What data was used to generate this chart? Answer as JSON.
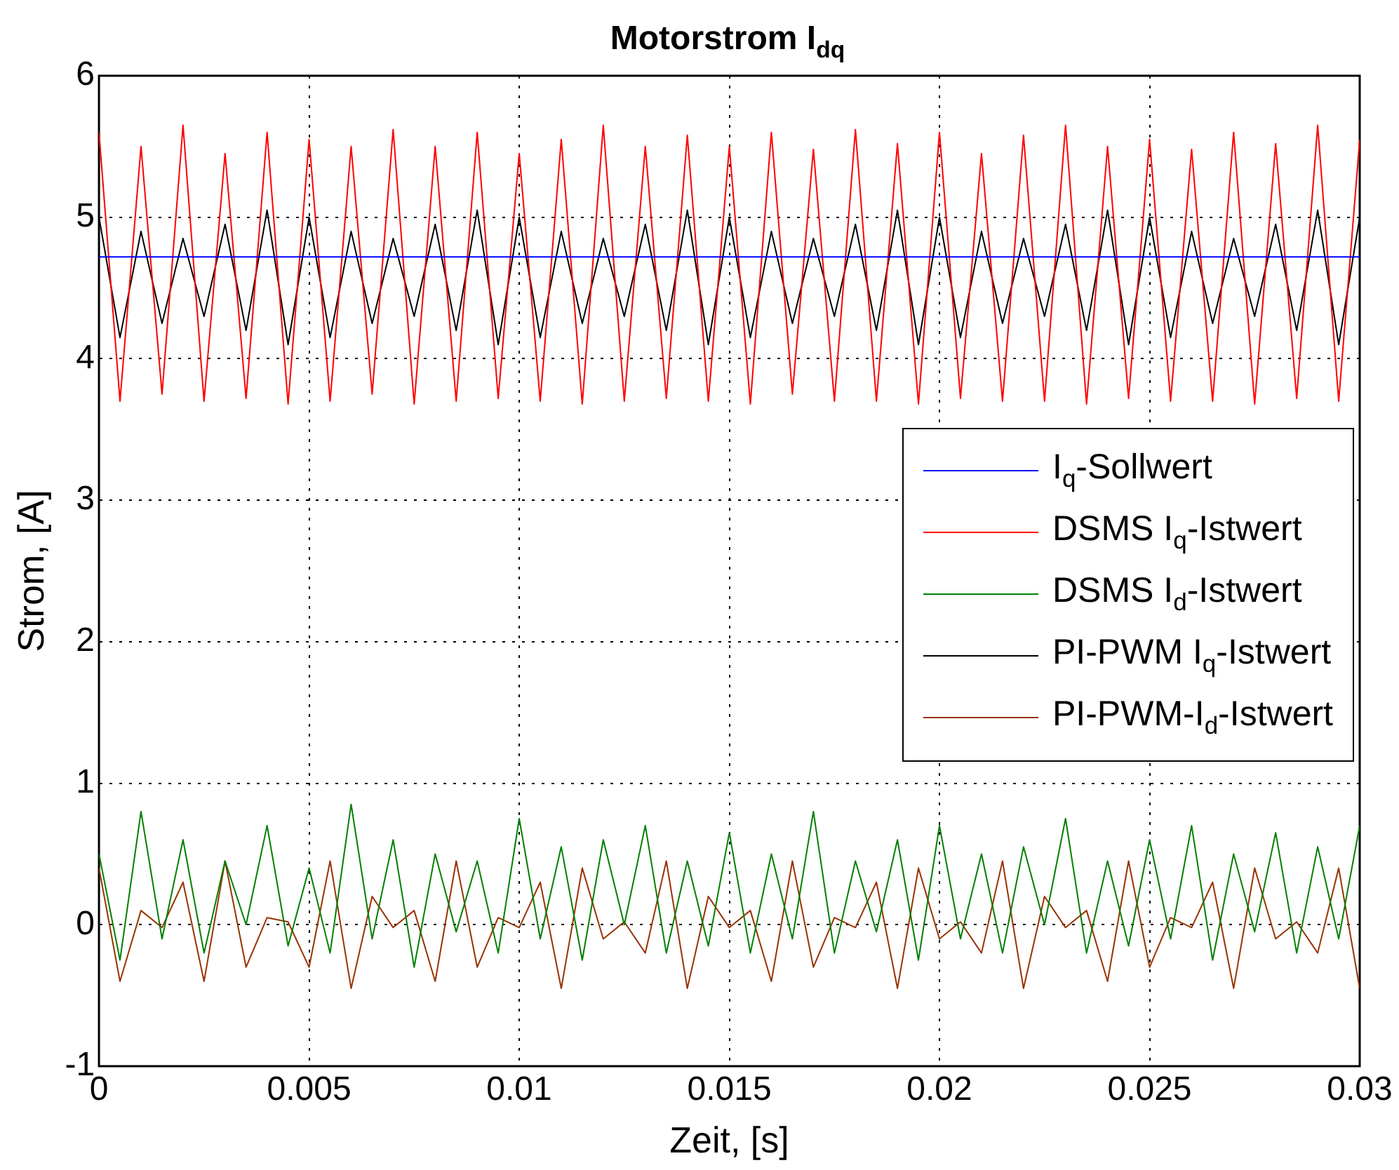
{
  "chart_data": {
    "type": "line",
    "title": "Motorstrom I$_{dq}$",
    "xlabel": "Zeit, [s]",
    "ylabel": "Strom, [A]",
    "x": [
      0,
      0.0005,
      0.001,
      0.0015,
      0.002,
      0.0025,
      0.003,
      0.0035,
      0.004,
      0.0045,
      0.005,
      0.0055,
      0.006,
      0.0065,
      0.007,
      0.0075,
      0.008,
      0.0085,
      0.009,
      0.0095,
      0.01,
      0.0105,
      0.011,
      0.0115,
      0.012,
      0.0125,
      0.013,
      0.0135,
      0.014,
      0.0145,
      0.015,
      0.0155,
      0.016,
      0.0165,
      0.017,
      0.0175,
      0.018,
      0.0185,
      0.019,
      0.0195,
      0.02,
      0.0205,
      0.021,
      0.0215,
      0.022,
      0.0225,
      0.023,
      0.0235,
      0.024,
      0.0245,
      0.025,
      0.0255,
      0.026,
      0.0265,
      0.027,
      0.0275,
      0.028,
      0.0285,
      0.029,
      0.0295,
      0.03
    ],
    "series": [
      {
        "name": "I$_{q}$-Sollwert",
        "color": "#0000ff",
        "x": [
          0,
          0.03
        ],
        "values": [
          4.72,
          4.72
        ]
      },
      {
        "name": "DSMS I$_{q}$-Istwert",
        "color": "#ff0000",
        "values": [
          5.6,
          3.7,
          5.5,
          3.75,
          5.65,
          3.7,
          5.45,
          3.72,
          5.6,
          3.68,
          5.55,
          3.7,
          5.5,
          3.75,
          5.62,
          3.68,
          5.5,
          3.7,
          5.6,
          3.72,
          5.45,
          3.7,
          5.55,
          3.68,
          5.65,
          3.7,
          5.5,
          3.72,
          5.58,
          3.7,
          5.5,
          3.68,
          5.6,
          3.75,
          5.48,
          3.7,
          5.62,
          3.7,
          5.52,
          3.68,
          5.6,
          3.72,
          5.45,
          3.7,
          5.58,
          3.7,
          5.65,
          3.68,
          5.5,
          3.72,
          5.55,
          3.7,
          5.48,
          3.7,
          5.6,
          3.68,
          5.52,
          3.72,
          5.65,
          3.7,
          5.55
        ]
      },
      {
        "name": "DSMS I$_{d}$-Istwert",
        "color": "#008000",
        "values": [
          0.5,
          -0.25,
          0.8,
          -0.1,
          0.6,
          -0.2,
          0.45,
          0.0,
          0.7,
          -0.15,
          0.4,
          -0.2,
          0.85,
          -0.1,
          0.6,
          -0.3,
          0.5,
          -0.05,
          0.45,
          -0.2,
          0.75,
          -0.1,
          0.55,
          -0.25,
          0.6,
          0.0,
          0.7,
          -0.2,
          0.45,
          -0.15,
          0.65,
          -0.2,
          0.5,
          -0.1,
          0.8,
          -0.2,
          0.45,
          -0.05,
          0.6,
          -0.25,
          0.7,
          -0.1,
          0.5,
          -0.2,
          0.55,
          0.0,
          0.75,
          -0.2,
          0.45,
          -0.15,
          0.6,
          -0.1,
          0.7,
          -0.25,
          0.5,
          -0.05,
          0.65,
          -0.2,
          0.55,
          -0.1,
          0.7
        ]
      },
      {
        "name": "PI-PWM I$_{q}$-Istwert",
        "color": "#000000",
        "values": [
          5.0,
          4.15,
          4.9,
          4.25,
          4.85,
          4.3,
          4.95,
          4.2,
          5.05,
          4.1,
          5.0,
          4.15,
          4.9,
          4.25,
          4.85,
          4.3,
          4.95,
          4.2,
          5.05,
          4.1,
          5.0,
          4.15,
          4.9,
          4.25,
          4.85,
          4.3,
          4.95,
          4.2,
          5.05,
          4.1,
          5.0,
          4.15,
          4.9,
          4.25,
          4.85,
          4.3,
          4.95,
          4.2,
          5.05,
          4.1,
          5.0,
          4.15,
          4.9,
          4.25,
          4.85,
          4.3,
          4.95,
          4.2,
          5.05,
          4.1,
          5.0,
          4.15,
          4.9,
          4.25,
          4.85,
          4.3,
          4.95,
          4.2,
          5.05,
          4.1,
          5.0
        ]
      },
      {
        "name": "PI-PWM-I$_{d}$-Istwert",
        "color": "#993300",
        "values": [
          0.4,
          -0.4,
          0.1,
          -0.02,
          0.3,
          -0.4,
          0.45,
          -0.3,
          0.05,
          0.02,
          -0.3,
          0.45,
          -0.45,
          0.2,
          -0.02,
          0.1,
          -0.4,
          0.45,
          -0.3,
          0.05,
          -0.02,
          0.3,
          -0.45,
          0.4,
          -0.1,
          0.02,
          -0.2,
          0.45,
          -0.45,
          0.2,
          -0.02,
          0.1,
          -0.4,
          0.45,
          -0.3,
          0.05,
          -0.02,
          0.3,
          -0.45,
          0.4,
          -0.1,
          0.02,
          -0.2,
          0.45,
          -0.45,
          0.2,
          -0.02,
          0.1,
          -0.4,
          0.45,
          -0.3,
          0.05,
          -0.02,
          0.3,
          -0.45,
          0.4,
          -0.1,
          0.02,
          -0.2,
          0.4,
          -0.45
        ]
      }
    ],
    "xlim": [
      0,
      0.03
    ],
    "xticks": [
      0,
      0.005,
      0.01,
      0.015,
      0.02,
      0.025,
      0.03
    ],
    "ylim": [
      -1,
      6
    ],
    "yticks": [
      -1,
      0,
      1,
      2,
      3,
      4,
      5,
      6
    ],
    "grid": true,
    "legend": "right",
    "marker": "none",
    "line_style": "solid"
  }
}
